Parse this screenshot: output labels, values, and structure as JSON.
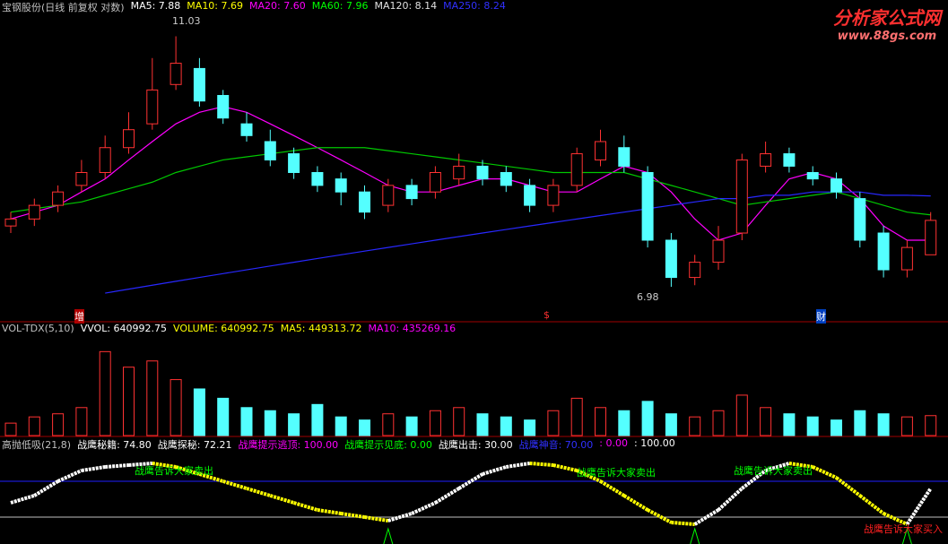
{
  "price_panel": {
    "title": "宝钢股份(日线 前复权 对数)",
    "legend": [
      {
        "label": "MA5: 7.88",
        "color": "#ffffff"
      },
      {
        "label": "MA10: 7.69",
        "color": "#ffff00"
      },
      {
        "label": "MA20: 7.60",
        "color": "#ff00ff"
      },
      {
        "label": "MA60: 7.96",
        "color": "#00ff00"
      },
      {
        "label": "MA120: 8.14",
        "color": "#e0e0e0"
      },
      {
        "label": "MA250: 8.24",
        "color": "#3030ff"
      }
    ],
    "high_label": "11.03",
    "low_label": "6.98",
    "markers": [
      "增",
      "$",
      "财"
    ]
  },
  "volume_panel": {
    "title": "VOL-TDX(5,10)",
    "legend": [
      {
        "label": "VVOL: 640992.75",
        "color": "#ffffff"
      },
      {
        "label": "VOLUME: 640992.75",
        "color": "#ffff00"
      },
      {
        "label": "MA5: 449313.72",
        "color": "#ffff00"
      },
      {
        "label": "MA10: 435269.16",
        "color": "#ff00ff"
      }
    ]
  },
  "indicator_panel": {
    "title": "高抛低吸(21,8)",
    "legend": [
      {
        "label": "战鹰秘籍: 74.80",
        "color": "#ffffff"
      },
      {
        "label": "战鹰探秘: 72.21",
        "color": "#ffffff"
      },
      {
        "label": "战鹰提示逃顶: 100.00",
        "color": "#ff00ff"
      },
      {
        "label": "战鹰提示见底: 0.00",
        "color": "#00ff00"
      },
      {
        "label": "战鹰出击: 30.00",
        "color": "#ffffff"
      },
      {
        "label": "战鹰神音: 70.00",
        "color": "#3030ff"
      },
      {
        "label": ": 0.00",
        "color": "#ff00ff"
      },
      {
        "label": ": 100.00",
        "color": "#ffffff"
      }
    ],
    "sell_labels": [
      "战鹰告诉大家卖出",
      "战鹰告诉大家卖出",
      "战鹰告诉大家卖出"
    ],
    "buy_label": "战鹰告诉大家买入"
  },
  "logo": {
    "name": "分析家公式网",
    "url": "www.88gs.com"
  },
  "chart_data": [
    {
      "type": "candlestick",
      "ylim": [
        6.7,
        11.5
      ],
      "log_scale": true,
      "up_color": "#ff3232",
      "down_color": "#54ffff",
      "open": [
        7.8,
        7.9,
        8.1,
        8.4,
        8.6,
        9.0,
        9.4,
        10.1,
        10.4,
        9.9,
        9.4,
        9.1,
        8.9,
        8.6,
        8.5,
        8.3,
        8.1,
        8.4,
        8.3,
        8.5,
        8.7,
        8.6,
        8.4,
        8.1,
        8.4,
        8.8,
        9.0,
        8.6,
        7.6,
        7.1,
        7.3,
        7.7,
        8.7,
        8.9,
        8.6,
        8.5,
        8.2,
        7.7,
        7.2,
        7.4
      ],
      "high": [
        8.0,
        8.2,
        8.4,
        8.8,
        9.2,
        9.6,
        10.6,
        11.03,
        10.6,
        10.0,
        9.6,
        9.3,
        9.0,
        8.7,
        8.6,
        8.4,
        8.5,
        8.5,
        8.7,
        8.9,
        8.8,
        8.7,
        8.5,
        8.5,
        9.0,
        9.3,
        9.2,
        8.7,
        7.7,
        7.4,
        7.8,
        8.9,
        9.1,
        9.0,
        8.7,
        8.6,
        8.3,
        7.8,
        7.6,
        8.0
      ],
      "low": [
        7.7,
        7.8,
        8.0,
        8.3,
        8.5,
        8.9,
        9.3,
        10.0,
        9.7,
        9.4,
        9.1,
        8.7,
        8.5,
        8.3,
        8.1,
        7.9,
        8.0,
        8.1,
        8.2,
        8.4,
        8.4,
        8.3,
        8.0,
        8.0,
        8.3,
        8.7,
        8.6,
        7.5,
        6.98,
        7.0,
        7.2,
        7.6,
        8.6,
        8.6,
        8.4,
        8.2,
        7.5,
        7.1,
        7.1,
        7.4
      ],
      "close": [
        7.9,
        8.1,
        8.3,
        8.6,
        9.0,
        9.3,
        10.0,
        10.5,
        9.8,
        9.5,
        9.2,
        8.8,
        8.6,
        8.4,
        8.3,
        8.0,
        8.4,
        8.2,
        8.6,
        8.7,
        8.5,
        8.4,
        8.1,
        8.4,
        8.9,
        9.1,
        8.7,
        7.6,
        7.1,
        7.3,
        7.6,
        8.8,
        8.9,
        8.7,
        8.5,
        8.3,
        7.6,
        7.2,
        7.5,
        7.88
      ],
      "lines": [
        {
          "color": "#ff00ff",
          "values": [
            7.9,
            8.0,
            8.1,
            8.3,
            8.5,
            8.8,
            9.1,
            9.4,
            9.6,
            9.7,
            9.6,
            9.4,
            9.2,
            9.0,
            8.8,
            8.6,
            8.4,
            8.3,
            8.3,
            8.4,
            8.5,
            8.5,
            8.4,
            8.3,
            8.3,
            8.5,
            8.7,
            8.6,
            8.3,
            7.9,
            7.6,
            7.7,
            8.1,
            8.5,
            8.6,
            8.5,
            8.2,
            7.8,
            7.6,
            7.6
          ]
        },
        {
          "color": "#00c800",
          "values": [
            8.0,
            8.05,
            8.1,
            8.15,
            8.25,
            8.35,
            8.45,
            8.6,
            8.7,
            8.8,
            8.85,
            8.9,
            8.95,
            9.0,
            9.0,
            9.0,
            8.95,
            8.9,
            8.85,
            8.8,
            8.75,
            8.7,
            8.65,
            8.6,
            8.6,
            8.6,
            8.6,
            8.5,
            8.4,
            8.3,
            8.2,
            8.1,
            8.15,
            8.2,
            8.25,
            8.3,
            8.2,
            8.1,
            8.0,
            7.96
          ]
        },
        {
          "color": "#2828ff",
          "values": [
            null,
            null,
            null,
            null,
            6.9,
            6.95,
            7.0,
            7.05,
            7.1,
            7.15,
            7.2,
            7.25,
            7.3,
            7.35,
            7.4,
            7.45,
            7.5,
            7.55,
            7.6,
            7.65,
            7.7,
            7.75,
            7.8,
            7.85,
            7.9,
            7.95,
            8.0,
            8.05,
            8.1,
            8.15,
            8.2,
            8.2,
            8.25,
            8.25,
            8.3,
            8.3,
            8.3,
            8.25,
            8.25,
            8.24
          ]
        }
      ]
    },
    {
      "type": "bar",
      "ylim": [
        0,
        3200000
      ],
      "values": [
        400000,
        600000,
        700000,
        900000,
        2700000,
        2200000,
        2400000,
        1800000,
        1500000,
        1200000,
        900000,
        800000,
        700000,
        1000000,
        600000,
        500000,
        700000,
        600000,
        800000,
        900000,
        700000,
        600000,
        500000,
        800000,
        1200000,
        900000,
        800000,
        1100000,
        700000,
        600000,
        800000,
        1300000,
        900000,
        700000,
        600000,
        500000,
        800000,
        700000,
        600000,
        640992.75
      ]
    },
    {
      "type": "line",
      "ylim": [
        -70,
        180
      ],
      "rise_color": "#ffffff",
      "fall_color": "#ffff00",
      "values": [
        40,
        60,
        100,
        130,
        140,
        145,
        150,
        140,
        120,
        100,
        80,
        60,
        40,
        20,
        10,
        0,
        -10,
        10,
        40,
        80,
        120,
        140,
        150,
        145,
        130,
        100,
        60,
        20,
        -15,
        -20,
        20,
        80,
        130,
        150,
        140,
        110,
        60,
        10,
        -20,
        80
      ],
      "ref_lines": [
        {
          "value": 100,
          "color": "#2020ff"
        },
        {
          "value": 0,
          "color": "#c0c0c0"
        }
      ]
    }
  ]
}
